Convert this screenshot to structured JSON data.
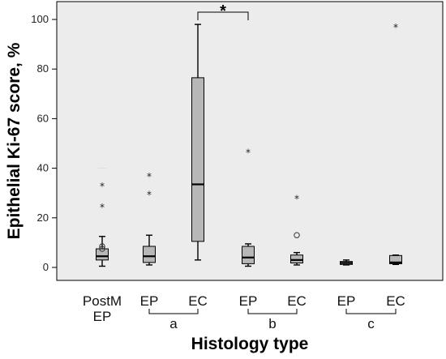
{
  "chart_data": {
    "type": "box",
    "xlabel": "Histology type",
    "ylabel": "Epithelial Ki-67 score, %",
    "ylim": [
      -4,
      104
    ],
    "yticks": [
      "0",
      "20",
      "40",
      "60",
      "80",
      "100"
    ],
    "ytick_values": [
      0,
      20,
      40,
      60,
      80,
      100
    ],
    "grid": false,
    "colors": {
      "plot_bg": "#ececec",
      "box_fill": "#b7b7b7",
      "stroke": "#000000",
      "whisker_cap_pale": "#dddddd"
    },
    "categories": [
      {
        "label": [
          "PostM",
          "EP"
        ],
        "min": 0.5,
        "q1": 3.0,
        "median": 4.5,
        "q3": 7.5,
        "max": 12.5,
        "outliers": [
          7.5,
          8.5
        ],
        "extremes": [
          24.5,
          33.0
        ],
        "pale_cap": 40
      },
      {
        "label": [
          "EP"
        ],
        "min": 1.0,
        "q1": 2.0,
        "median": 4.5,
        "q3": 8.5,
        "max": 13.0,
        "outliers": [],
        "extremes": [
          29.5,
          37.0
        ]
      },
      {
        "label": [
          "EC"
        ],
        "min": 3.0,
        "q1": 10.5,
        "median": 33.5,
        "q3": 76.5,
        "max": 98.0,
        "outliers": [],
        "extremes": []
      },
      {
        "label": [
          "EP"
        ],
        "min": 0.5,
        "q1": 1.5,
        "median": 4.0,
        "q3": 8.5,
        "max": 9.5,
        "outliers": [],
        "extremes": [
          46.5
        ]
      },
      {
        "label": [
          "EC"
        ],
        "min": 1.0,
        "q1": 1.8,
        "median": 3.0,
        "q3": 5.0,
        "max": 6.0,
        "outliers": [
          13.0
        ],
        "extremes": [
          28.0
        ]
      },
      {
        "label": [
          "EP"
        ],
        "min": 1.0,
        "q1": 1.2,
        "median": 1.8,
        "q3": 2.4,
        "max": 3.0,
        "outliers": [],
        "extremes": []
      },
      {
        "label": [
          "EC"
        ],
        "min": 1.2,
        "q1": 1.5,
        "median": 2.0,
        "q3": 4.8,
        "max": 5.0,
        "outliers": [],
        "extremes": [
          97.0
        ]
      }
    ],
    "groups": [
      {
        "label": "a",
        "from": 1,
        "to": 2
      },
      {
        "label": "b",
        "from": 3,
        "to": 4
      },
      {
        "label": "c",
        "from": 5,
        "to": 6
      }
    ],
    "significance": {
      "from": 2,
      "to": 3,
      "label": "*",
      "y": 104
    }
  }
}
